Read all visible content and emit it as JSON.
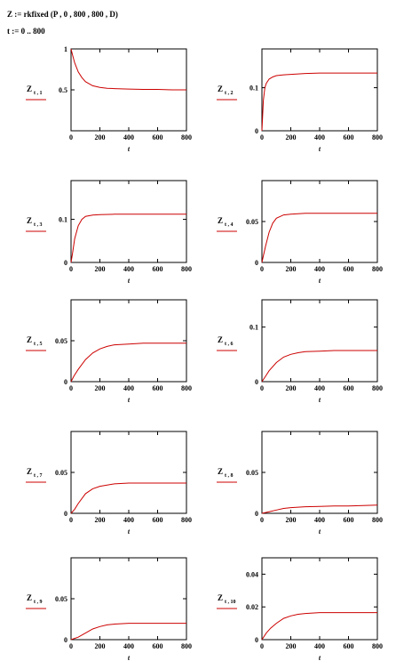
{
  "equations": {
    "line1": "Z := rkfixed (P , 0 , 800 , 800 , D)",
    "line2": "t := 0 .. 800"
  },
  "colors": {
    "trace": "#cc0000",
    "axis": "#000000",
    "background": "#ffffff"
  },
  "chart_data": [
    {
      "type": "line",
      "ylabel": "Z",
      "ylabel_sub": "t , 1",
      "xlabel": "t",
      "xlim": [
        0,
        800
      ],
      "ylim": [
        0,
        1
      ],
      "ytick_values": [
        0.5,
        1
      ],
      "ytick_labels": [
        "0.5",
        "1"
      ],
      "xtick_values": [
        0,
        200,
        400,
        600,
        800
      ],
      "xtick_labels": [
        "0",
        "200",
        "400",
        "600",
        "800"
      ],
      "series": [
        {
          "x": [
            0,
            10,
            25,
            50,
            75,
            100,
            150,
            200,
            250,
            300,
            400,
            500,
            600,
            700,
            800
          ],
          "y": [
            1.0,
            0.93,
            0.83,
            0.72,
            0.65,
            0.6,
            0.55,
            0.53,
            0.52,
            0.515,
            0.51,
            0.505,
            0.505,
            0.5,
            0.5
          ]
        }
      ]
    },
    {
      "type": "line",
      "ylabel": "Z",
      "ylabel_sub": "t , 2",
      "xlabel": "t",
      "xlim": [
        0,
        800
      ],
      "ylim": [
        0,
        0.19
      ],
      "ytick_values": [
        0,
        0.1
      ],
      "ytick_labels": [
        "0",
        "0.1"
      ],
      "xtick_values": [
        0,
        200,
        400,
        600,
        800
      ],
      "xtick_labels": [
        "0",
        "200",
        "400",
        "600",
        "800"
      ],
      "series": [
        {
          "x": [
            0,
            10,
            20,
            30,
            50,
            75,
            100,
            150,
            200,
            300,
            400,
            600,
            800
          ],
          "y": [
            0,
            0.07,
            0.1,
            0.11,
            0.12,
            0.125,
            0.128,
            0.13,
            0.131,
            0.133,
            0.134,
            0.134,
            0.134
          ]
        }
      ]
    },
    {
      "type": "line",
      "ylabel": "Z",
      "ylabel_sub": "t , 3",
      "xlabel": "t",
      "xlim": [
        0,
        800
      ],
      "ylim": [
        0,
        0.19
      ],
      "ytick_values": [
        0,
        0.1
      ],
      "ytick_labels": [
        "0",
        "0.1"
      ],
      "xtick_values": [
        0,
        200,
        400,
        600,
        800
      ],
      "xtick_labels": [
        "0",
        "200",
        "400",
        "600",
        "800"
      ],
      "series": [
        {
          "x": [
            0,
            10,
            25,
            50,
            75,
            100,
            150,
            200,
            300,
            400,
            600,
            800
          ],
          "y": [
            0,
            0.02,
            0.055,
            0.085,
            0.1,
            0.107,
            0.11,
            0.111,
            0.112,
            0.112,
            0.112,
            0.112
          ]
        }
      ]
    },
    {
      "type": "line",
      "ylabel": "Z",
      "ylabel_sub": "t , 4",
      "xlabel": "t",
      "xlim": [
        0,
        800
      ],
      "ylim": [
        0,
        0.1
      ],
      "ytick_values": [
        0,
        0.05
      ],
      "ytick_labels": [
        "0",
        "0.05"
      ],
      "xtick_values": [
        0,
        200,
        400,
        600,
        800
      ],
      "xtick_labels": [
        "0",
        "200",
        "400",
        "600",
        "800"
      ],
      "series": [
        {
          "x": [
            0,
            10,
            25,
            50,
            75,
            100,
            150,
            200,
            300,
            400,
            600,
            800
          ],
          "y": [
            0,
            0.008,
            0.02,
            0.037,
            0.048,
            0.054,
            0.058,
            0.059,
            0.06,
            0.06,
            0.06,
            0.06
          ]
        }
      ]
    },
    {
      "type": "line",
      "ylabel": "Z",
      "ylabel_sub": "t , 5",
      "xlabel": "t",
      "xlim": [
        0,
        800
      ],
      "ylim": [
        0,
        0.1
      ],
      "ytick_values": [
        0,
        0.05
      ],
      "ytick_labels": [
        "0",
        "0.05"
      ],
      "xtick_values": [
        0,
        200,
        400,
        600,
        800
      ],
      "xtick_labels": [
        "0",
        "200",
        "400",
        "600",
        "800"
      ],
      "series": [
        {
          "x": [
            0,
            20,
            50,
            100,
            150,
            200,
            250,
            300,
            400,
            500,
            600,
            800
          ],
          "y": [
            0,
            0.007,
            0.015,
            0.027,
            0.035,
            0.04,
            0.043,
            0.045,
            0.046,
            0.047,
            0.047,
            0.047
          ]
        }
      ]
    },
    {
      "type": "line",
      "ylabel": "Z",
      "ylabel_sub": "t , 6",
      "xlabel": "t",
      "xlim": [
        0,
        800
      ],
      "ylim": [
        0,
        0.15
      ],
      "ytick_values": [
        0,
        0.1
      ],
      "ytick_labels": [
        "0",
        "0.1"
      ],
      "xtick_values": [
        0,
        200,
        400,
        600,
        800
      ],
      "xtick_labels": [
        "0",
        "200",
        "400",
        "600",
        "800"
      ],
      "series": [
        {
          "x": [
            0,
            25,
            50,
            100,
            150,
            200,
            250,
            300,
            400,
            500,
            600,
            800
          ],
          "y": [
            0,
            0.01,
            0.02,
            0.035,
            0.045,
            0.05,
            0.053,
            0.055,
            0.056,
            0.057,
            0.057,
            0.057
          ]
        }
      ]
    },
    {
      "type": "line",
      "ylabel": "Z",
      "ylabel_sub": "t , 7",
      "xlabel": "t",
      "xlim": [
        0,
        800
      ],
      "ylim": [
        0,
        0.1
      ],
      "ytick_values": [
        0,
        0.05
      ],
      "ytick_labels": [
        "0",
        "0.05"
      ],
      "xtick_values": [
        0,
        200,
        400,
        600,
        800
      ],
      "xtick_labels": [
        "0",
        "200",
        "400",
        "600",
        "800"
      ],
      "series": [
        {
          "x": [
            0,
            25,
            50,
            100,
            150,
            200,
            300,
            400,
            500,
            600,
            800
          ],
          "y": [
            0,
            0.005,
            0.012,
            0.024,
            0.03,
            0.033,
            0.036,
            0.037,
            0.037,
            0.037,
            0.037
          ]
        }
      ]
    },
    {
      "type": "line",
      "ylabel": "Z",
      "ylabel_sub": "t , 8",
      "xlabel": "t",
      "xlim": [
        0,
        800
      ],
      "ylim": [
        0,
        0.1
      ],
      "ytick_values": [
        0,
        0.05
      ],
      "ytick_labels": [
        "0",
        "0.05"
      ],
      "xtick_values": [
        0,
        200,
        400,
        600,
        800
      ],
      "xtick_labels": [
        "0",
        "200",
        "400",
        "600",
        "800"
      ],
      "series": [
        {
          "x": [
            0,
            50,
            100,
            150,
            200,
            300,
            400,
            500,
            600,
            700,
            800
          ],
          "y": [
            0,
            0.002,
            0.004,
            0.006,
            0.007,
            0.008,
            0.0085,
            0.009,
            0.009,
            0.0095,
            0.01
          ]
        }
      ]
    },
    {
      "type": "line",
      "ylabel": "Z",
      "ylabel_sub": "t , 9",
      "xlabel": "t",
      "xlim": [
        0,
        800
      ],
      "ylim": [
        0,
        0.1
      ],
      "ytick_values": [
        0,
        0.05
      ],
      "ytick_labels": [
        "0",
        "0.05"
      ],
      "xtick_values": [
        0,
        200,
        400,
        600,
        800
      ],
      "xtick_labels": [
        "0",
        "200",
        "400",
        "600",
        "800"
      ],
      "series": [
        {
          "x": [
            0,
            50,
            100,
            150,
            200,
            250,
            300,
            400,
            500,
            600,
            800
          ],
          "y": [
            0,
            0.003,
            0.008,
            0.013,
            0.016,
            0.018,
            0.019,
            0.02,
            0.02,
            0.02,
            0.02
          ]
        }
      ]
    },
    {
      "type": "line",
      "ylabel": "Z",
      "ylabel_sub": "t , 10",
      "xlabel": "t",
      "xlim": [
        0,
        800
      ],
      "ylim": [
        0,
        0.05
      ],
      "ytick_values": [
        0,
        0.02,
        0.04
      ],
      "ytick_labels": [
        "0",
        "0.02",
        "0.04"
      ],
      "xtick_values": [
        0,
        200,
        400,
        600,
        800
      ],
      "xtick_labels": [
        "0",
        "200",
        "400",
        "600",
        "800"
      ],
      "series": [
        {
          "x": [
            0,
            30,
            60,
            100,
            150,
            200,
            250,
            300,
            400,
            500,
            600,
            800
          ],
          "y": [
            0,
            0.004,
            0.007,
            0.01,
            0.013,
            0.0145,
            0.0155,
            0.016,
            0.0165,
            0.0165,
            0.0165,
            0.0165
          ]
        }
      ]
    }
  ]
}
